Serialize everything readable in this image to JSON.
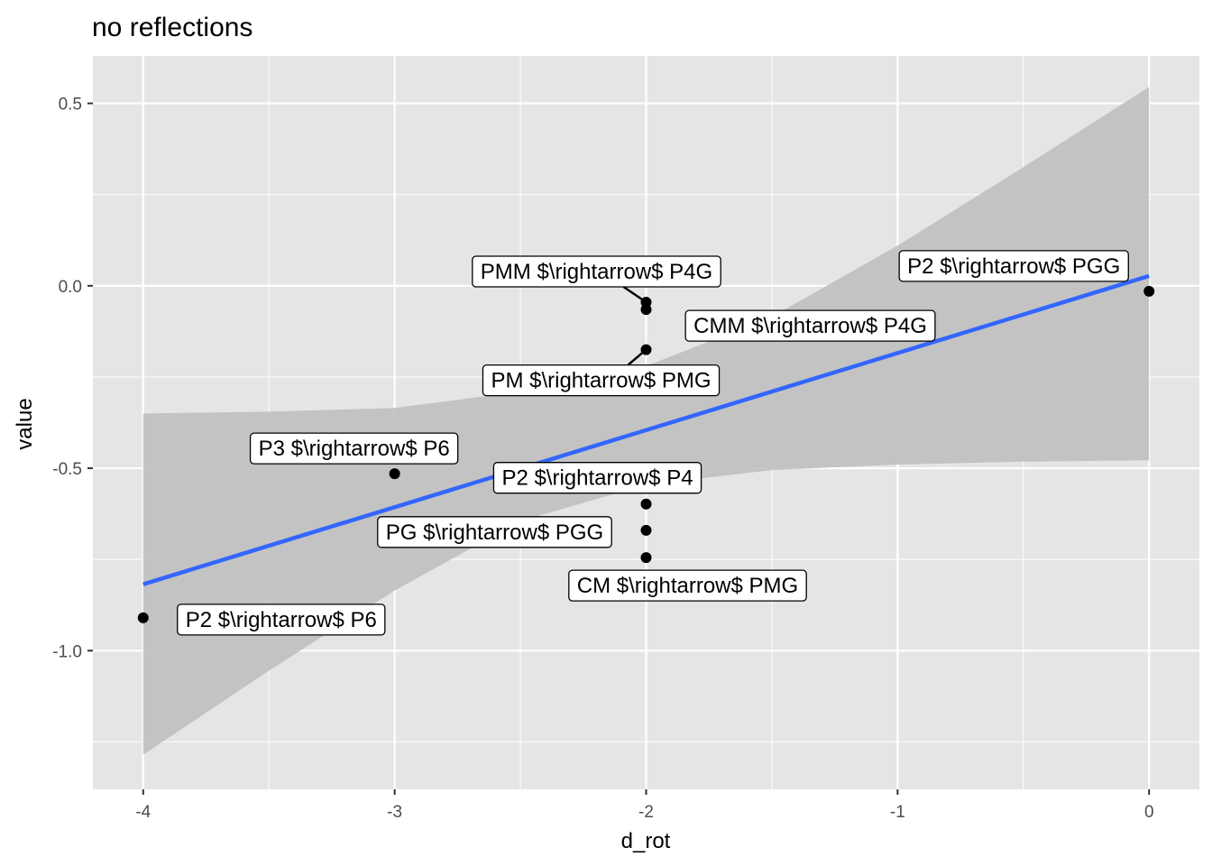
{
  "chart_data": {
    "type": "scatter",
    "title": "no reflections",
    "xlabel": "d_rot",
    "ylabel": "value",
    "xlim": [
      -4.2,
      0.2
    ],
    "ylim": [
      -1.38,
      0.63
    ],
    "x_ticks": [
      -4,
      -3,
      -2,
      -1,
      0
    ],
    "x_tick_labels": [
      "-4",
      "-3",
      "-2",
      "-1",
      "0"
    ],
    "y_ticks": [
      0.5,
      0.0,
      -0.5,
      -1.0
    ],
    "y_tick_labels": [
      "0.5",
      "0.0",
      "-0.5",
      "-1.0"
    ],
    "grid": true,
    "points": [
      {
        "x": 0,
        "y": -0.015,
        "label": "P2 $\\rightarrow$ PGG"
      },
      {
        "x": -2,
        "y": -0.045,
        "label": "PMM $\\rightarrow$ P4G"
      },
      {
        "x": -2,
        "y": -0.065,
        "label": "CMM $\\rightarrow$ P4G"
      },
      {
        "x": -2,
        "y": -0.175,
        "label": "PM $\\rightarrow$ PMG"
      },
      {
        "x": -3,
        "y": -0.515,
        "label": "P3 $\\rightarrow$ P6"
      },
      {
        "x": -2,
        "y": -0.598,
        "label": "P2 $\\rightarrow$ P4"
      },
      {
        "x": -2,
        "y": -0.67,
        "label": "PG $\\rightarrow$ PGG"
      },
      {
        "x": -2,
        "y": -0.745,
        "label": "CM $\\rightarrow$ PMG"
      },
      {
        "x": -4,
        "y": -0.91,
        "label": "P2 $\\rightarrow$ P6"
      }
    ],
    "fit_line": {
      "x": [
        -4,
        0
      ],
      "y": [
        -0.818,
        0.027
      ],
      "color": "#3366ff"
    },
    "confidence_band": {
      "x": [
        -4,
        -3.5,
        -3,
        -2.5,
        -2,
        -1.5,
        -1,
        -0.5,
        0
      ],
      "lower": [
        -1.285,
        -1.055,
        -0.835,
        -0.645,
        -0.545,
        -0.505,
        -0.49,
        -0.482,
        -0.478
      ],
      "upper": [
        -0.35,
        -0.345,
        -0.335,
        -0.29,
        -0.22,
        -0.085,
        0.11,
        0.325,
        0.545
      ]
    },
    "colors": {
      "panel_background": "#e5e5e5",
      "grid": "#ffffff",
      "band": "#bfbfbf",
      "point": "#000000"
    }
  }
}
